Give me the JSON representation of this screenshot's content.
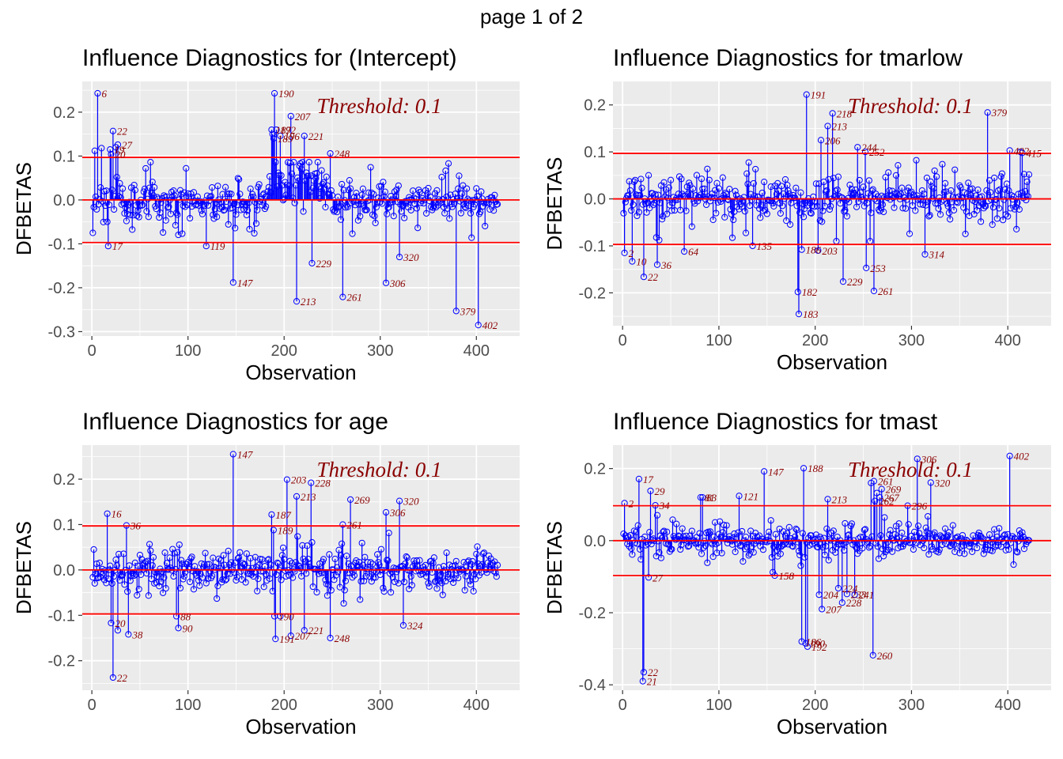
{
  "page_title": "page 1 of 2",
  "colors": {
    "panel_bg": "#ebebeb",
    "grid": "#ffffff",
    "stem": "#0000ff",
    "threshold_line": "#ff0000",
    "label": "#8b0000"
  },
  "chart_data": [
    {
      "type": "scatter",
      "title": "Influence Diagnostics for (Intercept)",
      "xlabel": "Observation",
      "ylabel": "DFBETAS",
      "xlim": [
        -10,
        445
      ],
      "ylim": [
        -0.31,
        0.27
      ],
      "xticks": [
        0,
        100,
        200,
        300,
        400
      ],
      "yticks": [
        -0.3,
        -0.2,
        -0.1,
        0.0,
        0.1,
        0.2
      ],
      "ytick_labels": [
        "-0.3",
        "-0.2",
        "-0.1",
        "0.0",
        "0.1",
        "0.2"
      ],
      "threshold": 0.097,
      "threshold_label": "Threshold: 0.1",
      "grid": true,
      "points": [
        [
          1,
          -0.075
        ],
        [
          3,
          0.112
        ],
        [
          6,
          0.243
        ],
        [
          10,
          0.118
        ],
        [
          17,
          -0.105
        ],
        [
          19,
          0.115
        ],
        [
          20,
          0.104
        ],
        [
          22,
          0.157
        ],
        [
          25,
          0.12
        ],
        [
          27,
          0.126
        ],
        [
          119,
          -0.105
        ],
        [
          147,
          -0.188
        ],
        [
          187,
          0.16
        ],
        [
          188,
          0.15
        ],
        [
          189,
          0.14
        ],
        [
          190,
          0.243
        ],
        [
          192,
          0.16
        ],
        [
          196,
          0.146
        ],
        [
          207,
          0.191
        ],
        [
          213,
          -0.231
        ],
        [
          221,
          0.146
        ],
        [
          229,
          -0.144
        ],
        [
          248,
          0.106
        ],
        [
          261,
          -0.221
        ],
        [
          306,
          -0.189
        ],
        [
          320,
          -0.13
        ],
        [
          379,
          -0.253
        ],
        [
          402,
          -0.285
        ]
      ],
      "labels": [
        {
          "obs": 6,
          "text": "6"
        },
        {
          "obs": 17,
          "text": "17"
        },
        {
          "obs": 19,
          "text": "19"
        },
        {
          "obs": 20,
          "text": "20"
        },
        {
          "obs": 22,
          "text": "22"
        },
        {
          "obs": 27,
          "text": "27"
        },
        {
          "obs": 119,
          "text": "119"
        },
        {
          "obs": 147,
          "text": "147"
        },
        {
          "obs": 187,
          "text": "187"
        },
        {
          "obs": 189,
          "text": "189"
        },
        {
          "obs": 190,
          "text": "190"
        },
        {
          "obs": 192,
          "text": "192"
        },
        {
          "obs": 196,
          "text": "196"
        },
        {
          "obs": 207,
          "text": "207"
        },
        {
          "obs": 213,
          "text": "213"
        },
        {
          "obs": 221,
          "text": "221"
        },
        {
          "obs": 229,
          "text": "229"
        },
        {
          "obs": 248,
          "text": "248"
        },
        {
          "obs": 261,
          "text": "261"
        },
        {
          "obs": 306,
          "text": "306"
        },
        {
          "obs": 320,
          "text": "320"
        },
        {
          "obs": 379,
          "text": "379"
        },
        {
          "obs": 402,
          "text": "402"
        }
      ],
      "bulk_seed": 11,
      "bulk_scale": 0.03,
      "bulk_max": 0.086,
      "bulk_hi": [
        [
          188,
          246,
          0.05,
          0.038
        ]
      ]
    },
    {
      "type": "scatter",
      "title": "Influence Diagnostics for tmarlow",
      "xlabel": "Observation",
      "ylabel": "DFBETAS",
      "xlim": [
        -10,
        445
      ],
      "ylim": [
        -0.27,
        0.25
      ],
      "xticks": [
        0,
        100,
        200,
        300,
        400
      ],
      "yticks": [
        -0.2,
        -0.1,
        0.0,
        0.1,
        0.2
      ],
      "ytick_labels": [
        "-0.2",
        "-0.1",
        "0.0",
        "0.1",
        "0.2"
      ],
      "threshold": 0.097,
      "threshold_label": "Threshold: 0.1",
      "grid": true,
      "points": [
        [
          2,
          -0.115
        ],
        [
          10,
          -0.133
        ],
        [
          22,
          -0.166
        ],
        [
          36,
          -0.14
        ],
        [
          64,
          -0.112
        ],
        [
          135,
          -0.1
        ],
        [
          182,
          -0.198
        ],
        [
          183,
          -0.245
        ],
        [
          186,
          -0.108
        ],
        [
          191,
          0.222
        ],
        [
          203,
          -0.11
        ],
        [
          206,
          0.125
        ],
        [
          213,
          0.155
        ],
        [
          218,
          0.182
        ],
        [
          229,
          -0.176
        ],
        [
          244,
          0.11
        ],
        [
          252,
          0.1
        ],
        [
          253,
          -0.147
        ],
        [
          261,
          -0.196
        ],
        [
          314,
          -0.118
        ],
        [
          379,
          0.184
        ],
        [
          402,
          0.103
        ],
        [
          413,
          0.1
        ],
        [
          415,
          0.098
        ]
      ],
      "labels": [
        {
          "obs": 2,
          "text": "2"
        },
        {
          "obs": 10,
          "text": "10"
        },
        {
          "obs": 22,
          "text": "22"
        },
        {
          "obs": 36,
          "text": "36"
        },
        {
          "obs": 64,
          "text": "64"
        },
        {
          "obs": 135,
          "text": "135"
        },
        {
          "obs": 182,
          "text": "182"
        },
        {
          "obs": 183,
          "text": "183"
        },
        {
          "obs": 186,
          "text": "186"
        },
        {
          "obs": 191,
          "text": "191"
        },
        {
          "obs": 203,
          "text": "203"
        },
        {
          "obs": 206,
          "text": "206"
        },
        {
          "obs": 213,
          "text": "213"
        },
        {
          "obs": 218,
          "text": "218"
        },
        {
          "obs": 229,
          "text": "229"
        },
        {
          "obs": 244,
          "text": "244"
        },
        {
          "obs": 252,
          "text": "252"
        },
        {
          "obs": 253,
          "text": "253"
        },
        {
          "obs": 261,
          "text": "261"
        },
        {
          "obs": 314,
          "text": "314"
        },
        {
          "obs": 379,
          "text": "379"
        },
        {
          "obs": 402,
          "text": "402"
        },
        {
          "obs": 415,
          "text": "415"
        }
      ],
      "bulk_seed": 23,
      "bulk_scale": 0.032,
      "bulk_max": 0.09,
      "bulk_hi": []
    },
    {
      "type": "scatter",
      "title": "Influence Diagnostics for age",
      "xlabel": "Observation",
      "ylabel": "DFBETAS",
      "xlim": [
        -10,
        445
      ],
      "ylim": [
        -0.265,
        0.275
      ],
      "xticks": [
        0,
        100,
        200,
        300,
        400
      ],
      "yticks": [
        -0.2,
        -0.1,
        0.0,
        0.1,
        0.2
      ],
      "ytick_labels": [
        "-0.2",
        "-0.1",
        "0.0",
        "0.1",
        "0.2"
      ],
      "threshold": 0.097,
      "threshold_label": "Threshold: 0.1",
      "grid": true,
      "points": [
        [
          16,
          0.124
        ],
        [
          20,
          -0.117
        ],
        [
          22,
          -0.237
        ],
        [
          27,
          -0.133
        ],
        [
          36,
          0.098
        ],
        [
          38,
          -0.142
        ],
        [
          88,
          -0.102
        ],
        [
          90,
          -0.128
        ],
        [
          147,
          0.255
        ],
        [
          187,
          0.122
        ],
        [
          190,
          -0.102
        ],
        [
          191,
          -0.152
        ],
        [
          196,
          -0.102
        ],
        [
          203,
          0.199
        ],
        [
          207,
          -0.145
        ],
        [
          213,
          0.162
        ],
        [
          221,
          -0.133
        ],
        [
          228,
          0.192
        ],
        [
          248,
          -0.15
        ],
        [
          261,
          0.1
        ],
        [
          269,
          0.155
        ],
        [
          306,
          0.127
        ],
        [
          320,
          0.152
        ],
        [
          324,
          -0.122
        ]
      ],
      "labels": [
        {
          "obs": 16,
          "text": "16"
        },
        {
          "obs": 20,
          "text": "20"
        },
        {
          "obs": 22,
          "text": "22"
        },
        {
          "obs": 36,
          "text": "36"
        },
        {
          "obs": 38,
          "text": "38"
        },
        {
          "obs": 88,
          "text": "88"
        },
        {
          "obs": 90,
          "text": "90"
        },
        {
          "obs": 147,
          "text": "147"
        },
        {
          "obs": 187,
          "text": "187"
        },
        {
          "obs": 189,
          "text": "189"
        },
        {
          "obs": 190,
          "text": "190"
        },
        {
          "obs": 191,
          "text": "191"
        },
        {
          "obs": 203,
          "text": "203"
        },
        {
          "obs": 207,
          "text": "207"
        },
        {
          "obs": 213,
          "text": "213"
        },
        {
          "obs": 221,
          "text": "221"
        },
        {
          "obs": 228,
          "text": "228"
        },
        {
          "obs": 248,
          "text": "248"
        },
        {
          "obs": 261,
          "text": "261"
        },
        {
          "obs": 269,
          "text": "269"
        },
        {
          "obs": 306,
          "text": "306"
        },
        {
          "obs": 320,
          "text": "320"
        },
        {
          "obs": 324,
          "text": "324"
        }
      ],
      "bulk_seed": 37,
      "bulk_scale": 0.03,
      "bulk_max": 0.088,
      "bulk_hi": []
    },
    {
      "type": "scatter",
      "title": "Influence Diagnostics for tmast",
      "xlabel": "Observation",
      "ylabel": "DFBETAS",
      "xlim": [
        -10,
        445
      ],
      "ylim": [
        -0.415,
        0.265
      ],
      "xticks": [
        0,
        100,
        200,
        300,
        400
      ],
      "yticks": [
        -0.4,
        -0.2,
        0.0,
        0.2
      ],
      "ytick_labels": [
        "-0.4",
        "-0.2",
        "0.0",
        "0.2"
      ],
      "threshold": 0.097,
      "threshold_label": "Threshold: 0.1",
      "grid": true,
      "points": [
        [
          2,
          0.104
        ],
        [
          17,
          0.171
        ],
        [
          21,
          -0.39
        ],
        [
          22,
          -0.365
        ],
        [
          27,
          -0.102
        ],
        [
          29,
          0.138
        ],
        [
          34,
          0.098
        ],
        [
          81,
          0.12
        ],
        [
          83,
          0.12
        ],
        [
          121,
          0.124
        ],
        [
          147,
          0.192
        ],
        [
          158,
          -0.097
        ],
        [
          186,
          -0.28
        ],
        [
          188,
          0.201
        ],
        [
          190,
          -0.285
        ],
        [
          192,
          -0.294
        ],
        [
          204,
          -0.15
        ],
        [
          207,
          -0.19
        ],
        [
          213,
          0.115
        ],
        [
          224,
          -0.132
        ],
        [
          228,
          -0.172
        ],
        [
          233,
          -0.148
        ],
        [
          241,
          -0.15
        ],
        [
          258,
          0.16
        ],
        [
          260,
          -0.318
        ],
        [
          261,
          0.165
        ],
        [
          262,
          0.11
        ],
        [
          264,
          0.132
        ],
        [
          267,
          0.12
        ],
        [
          269,
          0.143
        ],
        [
          296,
          0.097
        ],
        [
          306,
          0.227
        ],
        [
          320,
          0.161
        ],
        [
          402,
          0.235
        ]
      ],
      "labels": [
        {
          "obs": 2,
          "text": "2"
        },
        {
          "obs": 17,
          "text": "17"
        },
        {
          "obs": 21,
          "text": "21"
        },
        {
          "obs": 22,
          "text": "22"
        },
        {
          "obs": 27,
          "text": "27"
        },
        {
          "obs": 29,
          "text": "29"
        },
        {
          "obs": 34,
          "text": "34"
        },
        {
          "obs": 81,
          "text": "81"
        },
        {
          "obs": 83,
          "text": "83"
        },
        {
          "obs": 121,
          "text": "121"
        },
        {
          "obs": 147,
          "text": "147"
        },
        {
          "obs": 158,
          "text": "158"
        },
        {
          "obs": 186,
          "text": "186"
        },
        {
          "obs": 188,
          "text": "188"
        },
        {
          "obs": 190,
          "text": "190"
        },
        {
          "obs": 192,
          "text": "192"
        },
        {
          "obs": 204,
          "text": "204"
        },
        {
          "obs": 207,
          "text": "207"
        },
        {
          "obs": 213,
          "text": "213"
        },
        {
          "obs": 224,
          "text": "224"
        },
        {
          "obs": 228,
          "text": "228"
        },
        {
          "obs": 233,
          "text": "233"
        },
        {
          "obs": 241,
          "text": "241"
        },
        {
          "obs": 260,
          "text": "260"
        },
        {
          "obs": 261,
          "text": "261"
        },
        {
          "obs": 262,
          "text": "262"
        },
        {
          "obs": 267,
          "text": "267"
        },
        {
          "obs": 269,
          "text": "269"
        },
        {
          "obs": 296,
          "text": "296"
        },
        {
          "obs": 306,
          "text": "306"
        },
        {
          "obs": 320,
          "text": "320"
        },
        {
          "obs": 402,
          "text": "402"
        }
      ],
      "bulk_seed": 53,
      "bulk_scale": 0.03,
      "bulk_max": 0.088,
      "bulk_hi": []
    }
  ]
}
